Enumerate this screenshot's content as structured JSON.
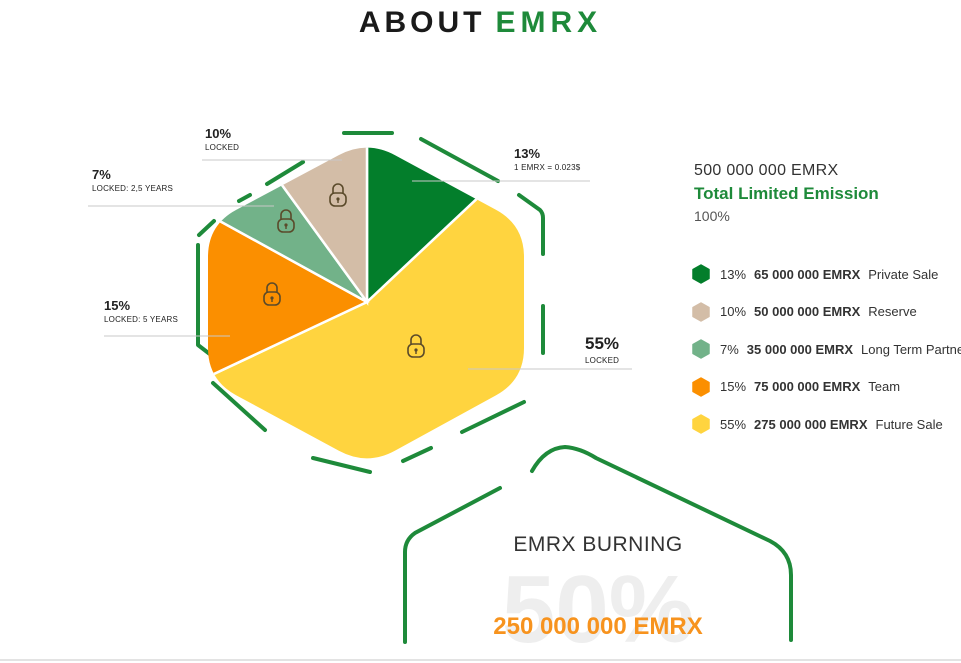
{
  "header": {
    "title_prefix": "ABOUT",
    "title_brand": "EMRX"
  },
  "chart_data": {
    "type": "pie",
    "categories": [
      "Private Sale",
      "Future Sale",
      "Team",
      "Long Term Partners",
      "Reserve"
    ],
    "values": [
      13,
      55,
      15,
      7,
      10
    ],
    "colors": [
      "#037e2b",
      "#ffd43f",
      "#fb8f00",
      "#72b289",
      "#d3bda7"
    ],
    "slice_labels": [
      {
        "pct": "13%",
        "note": "1 EMRX = 0.023$"
      },
      {
        "pct": "55%",
        "note": "LOCKED"
      },
      {
        "pct": "15%",
        "note": "LOCKED: 5 YEARS"
      },
      {
        "pct": "7%",
        "note": "LOCKED: 2,5 YEARS"
      },
      {
        "pct": "10%",
        "note": "LOCKED"
      }
    ],
    "locked": [
      false,
      true,
      true,
      true,
      true
    ]
  },
  "summary": {
    "total": "500 000 000 EMRX",
    "label": "Total Limited Emission",
    "percent": "100%"
  },
  "legend": [
    {
      "pct": "13%",
      "amount": "65 000 000 EMRX",
      "name": "Private Sale",
      "color": "#037e2b"
    },
    {
      "pct": "10%",
      "amount": "50 000 000 EMRX",
      "name": "Reserve",
      "color": "#d3bda7"
    },
    {
      "pct": "7%",
      "amount": "35 000 000 EMRX",
      "name": "Long Term Partners",
      "color": "#72b289"
    },
    {
      "pct": "15%",
      "amount": "75 000 000 EMRX",
      "name": "Team",
      "color": "#fb8f00"
    },
    {
      "pct": "55%",
      "amount": "275 000 000 EMRX",
      "name": "Future Sale",
      "color": "#ffd43f"
    }
  ],
  "burning": {
    "title": "EMRX BURNING",
    "background": "50%",
    "amount": "250 000 000 EMRX"
  },
  "icons": {
    "lock": "lock-icon",
    "hexagon": "hexagon-icon"
  }
}
